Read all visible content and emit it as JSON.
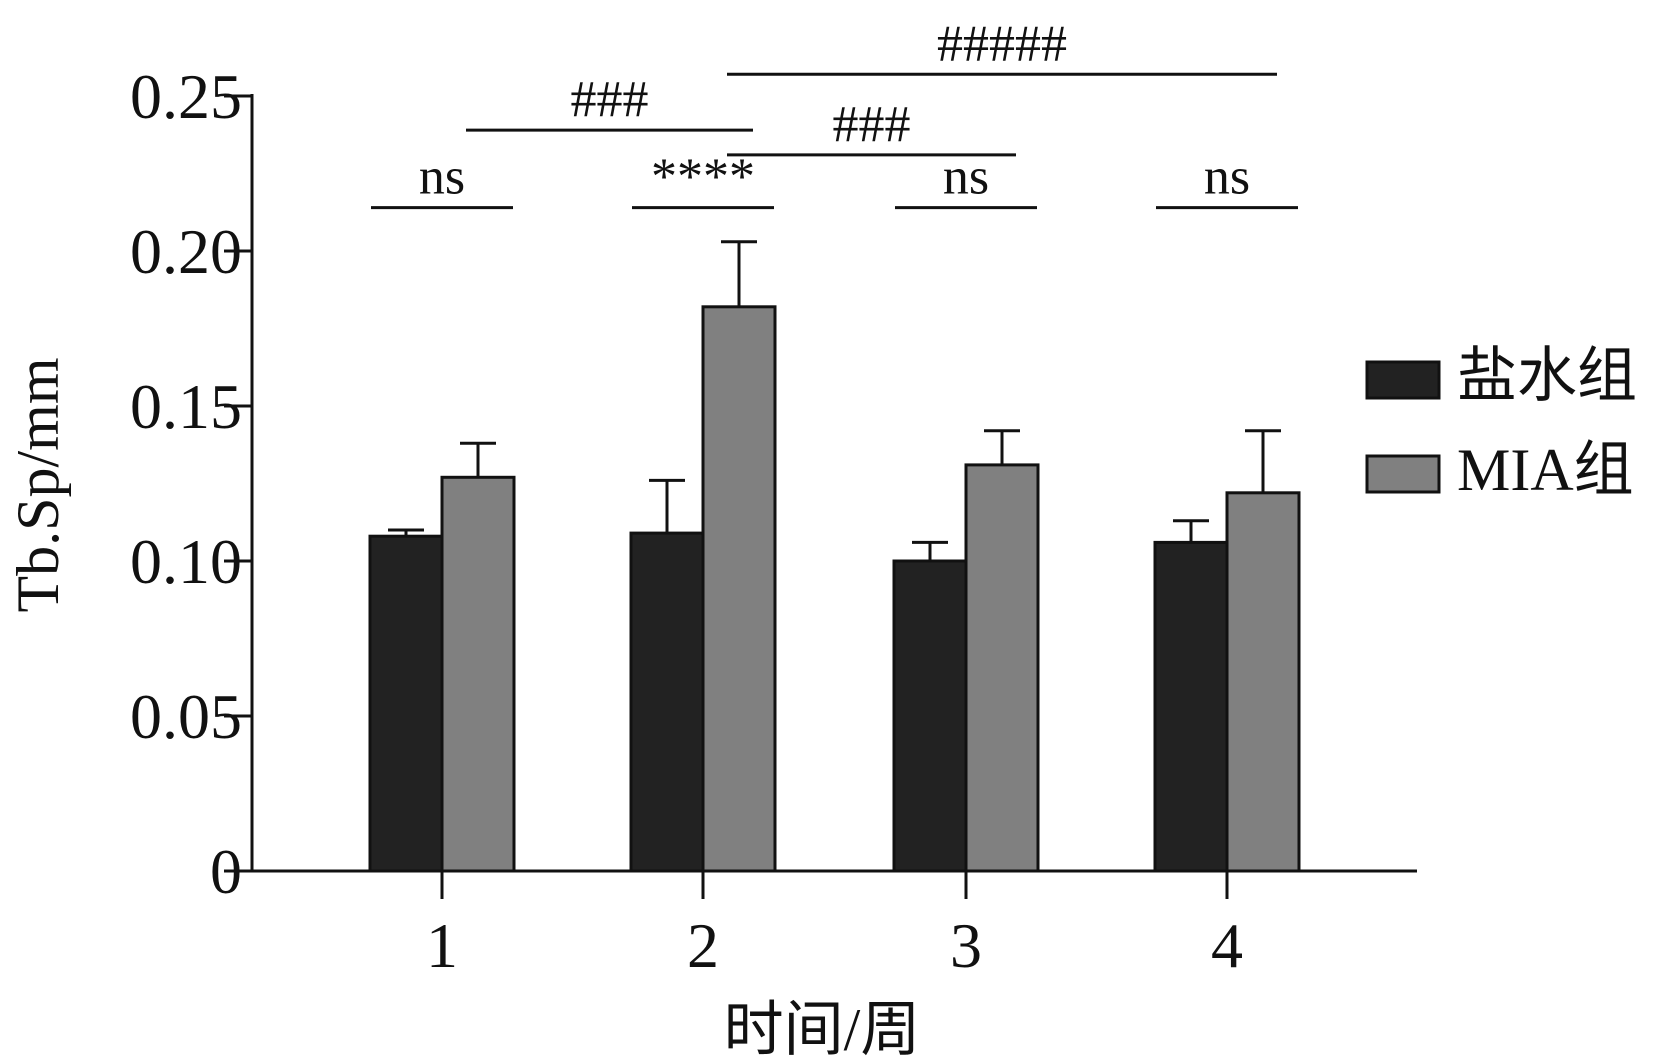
{
  "chart_data": {
    "type": "bar",
    "title": "",
    "xlabel": "时间/周",
    "ylabel": "Tb.Sp/mm",
    "categories": [
      "1",
      "2",
      "3",
      "4"
    ],
    "ylim": [
      0,
      0.25
    ],
    "yticks": [
      0,
      0.05,
      0.1,
      0.15,
      0.2,
      0.25
    ],
    "ytick_labels": [
      "0",
      "0.05",
      "0.10",
      "0.15",
      "0.20",
      "0.25"
    ],
    "grid": false,
    "legend_position": "right",
    "series": [
      {
        "name": "盐水组",
        "color": "#222222",
        "values": [
          0.108,
          0.109,
          0.1,
          0.106
        ],
        "errors": [
          0.002,
          0.017,
          0.006,
          0.007
        ]
      },
      {
        "name": "MIA组",
        "color": "#808080",
        "values": [
          0.127,
          0.182,
          0.131,
          0.122
        ],
        "errors": [
          0.011,
          0.021,
          0.011,
          0.02
        ]
      }
    ],
    "annotations": [
      {
        "label": "ns",
        "from": {
          "category": 0,
          "series": 0
        },
        "to": {
          "category": 0,
          "series": 1
        },
        "level": 0.214
      },
      {
        "label": "****",
        "from": {
          "category": 1,
          "series": 0
        },
        "to": {
          "category": 1,
          "series": 1
        },
        "level": 0.214
      },
      {
        "label": "ns",
        "from": {
          "category": 2,
          "series": 0
        },
        "to": {
          "category": 2,
          "series": 1
        },
        "level": 0.214
      },
      {
        "label": "ns",
        "from": {
          "category": 3,
          "series": 0
        },
        "to": {
          "category": 3,
          "series": 1
        },
        "level": 0.214
      },
      {
        "label": "###",
        "from": {
          "category": 0,
          "series": 1
        },
        "to": {
          "category": 1,
          "series": 1
        },
        "level": 0.239
      },
      {
        "label": "###",
        "from": {
          "category": 1,
          "series": 1
        },
        "to": {
          "category": 2,
          "series": 1
        },
        "level": 0.231
      },
      {
        "label": "#####",
        "from": {
          "category": 1,
          "series": 1
        },
        "to": {
          "category": 3,
          "series": 1
        },
        "level": 0.257
      }
    ]
  }
}
